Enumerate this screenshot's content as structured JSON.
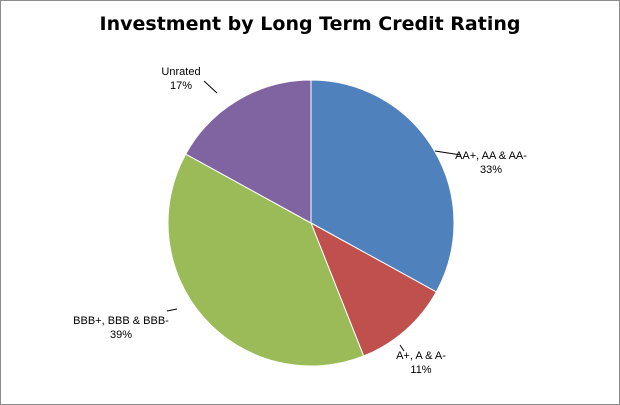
{
  "chart_data": {
    "type": "pie",
    "title": "Investment by Long Term Credit Rating",
    "slices": [
      {
        "label": "AA+, AA & AA-",
        "value": 33,
        "percent_label": "33%",
        "color": "#4f81bd"
      },
      {
        "label": "A+, A & A-",
        "value": 11,
        "percent_label": "11%",
        "color": "#c0504d"
      },
      {
        "label": "BBB+, BBB & BBB-",
        "value": 39,
        "percent_label": "39%",
        "color": "#9bbb59"
      },
      {
        "label": "Unrated",
        "value": 17,
        "percent_label": "17%",
        "color": "#8064a2"
      }
    ],
    "start": "12 o'clock",
    "direction": "clockwise",
    "legend": "none",
    "data_labels": "outside with leader lines"
  }
}
